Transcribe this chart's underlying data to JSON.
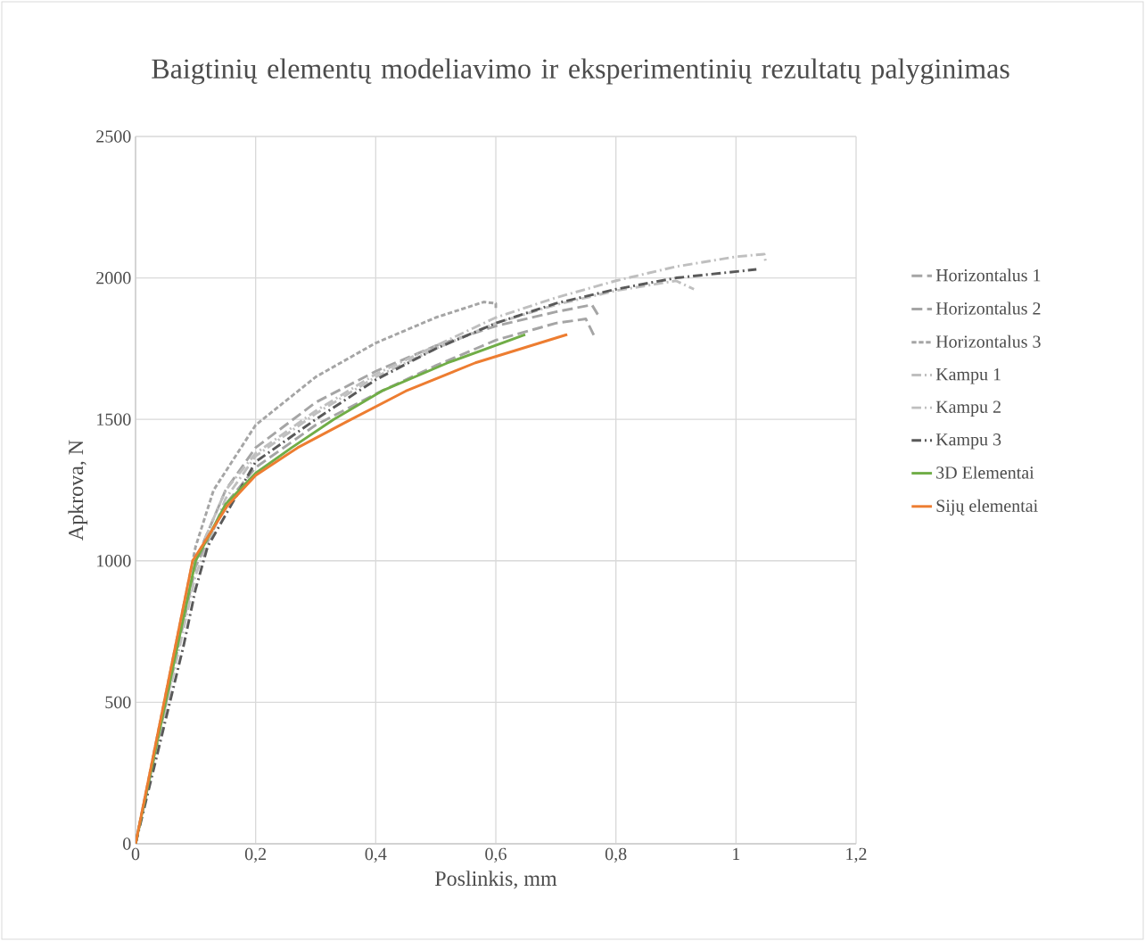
{
  "chart_data": {
    "type": "line",
    "title": "Baigtinių elementų modeliavimo ir eksperimentinių rezultatų palyginimas",
    "xlabel": "Poslinkis, mm",
    "ylabel": "Apkrova, N",
    "xlim": [
      0,
      1.2
    ],
    "ylim": [
      0,
      2500
    ],
    "xticks": [
      0,
      {
        "value": 0.2,
        "label": "0,2"
      },
      {
        "value": 0.4,
        "label": "0,4"
      },
      {
        "value": 0.6,
        "label": "0,6"
      },
      {
        "value": 0.8,
        "label": "0,8"
      },
      1,
      {
        "value": 1.2,
        "label": "1,2"
      }
    ],
    "yticks": [
      0,
      500,
      1000,
      1500,
      2000,
      2500
    ],
    "grid": true,
    "legend": "right",
    "marker": "none",
    "series": [
      {
        "name": "Horizontalus 1",
        "color": "#a5a5a5",
        "line_style": "dashed",
        "x": [
          0,
          0.1,
          0.15,
          0.2,
          0.3,
          0.4,
          0.5,
          0.6,
          0.7,
          0.75,
          0.765
        ],
        "values": [
          0,
          980,
          1200,
          1330,
          1480,
          1590,
          1690,
          1780,
          1840,
          1855,
          1790
        ]
      },
      {
        "name": "Horizontalus 2",
        "color": "#a5a5a5",
        "line_style": "dashed",
        "x": [
          0,
          0.1,
          0.15,
          0.2,
          0.3,
          0.4,
          0.5,
          0.6,
          0.7,
          0.76,
          0.77
        ],
        "values": [
          0,
          1000,
          1250,
          1400,
          1560,
          1670,
          1760,
          1830,
          1880,
          1905,
          1870
        ]
      },
      {
        "name": "Horizontalus 3",
        "color": "#a5a5a5",
        "line_style": "dotted",
        "x": [
          0,
          0.1,
          0.13,
          0.2,
          0.3,
          0.4,
          0.5,
          0.58,
          0.6,
          0.6
        ],
        "values": [
          0,
          1050,
          1250,
          1480,
          1650,
          1770,
          1860,
          1915,
          1910,
          1890
        ]
      },
      {
        "name": "Kampu 1",
        "color": "#bfbfbf",
        "line_style": "dashdot",
        "x": [
          0,
          0.1,
          0.15,
          0.2,
          0.3,
          0.4,
          0.5,
          0.6,
          0.7,
          0.8,
          0.9,
          1.0,
          1.047,
          1.05
        ],
        "values": [
          0,
          1000,
          1250,
          1380,
          1530,
          1660,
          1760,
          1860,
          1930,
          1990,
          2040,
          2075,
          2084,
          2050
        ]
      },
      {
        "name": "Kampu 2",
        "color": "#bfbfbf",
        "line_style": "dashdot",
        "x": [
          0,
          0.1,
          0.15,
          0.2,
          0.3,
          0.4,
          0.5,
          0.6,
          0.7,
          0.8,
          0.9,
          0.93
        ],
        "values": [
          0,
          950,
          1220,
          1370,
          1520,
          1650,
          1750,
          1840,
          1905,
          1955,
          1990,
          1960
        ]
      },
      {
        "name": "Kampu 3",
        "color": "#595959",
        "line_style": "dashdot",
        "x": [
          0,
          0.08,
          0.1,
          0.12,
          0.16,
          0.2,
          0.3,
          0.4,
          0.5,
          0.6,
          0.7,
          0.8,
          0.9,
          1.034
        ],
        "values": [
          0,
          700,
          900,
          1050,
          1200,
          1350,
          1500,
          1640,
          1750,
          1840,
          1910,
          1960,
          2000,
          2030
        ]
      },
      {
        "name": "3D Elementai",
        "color": "#70ad47",
        "line_style": "solid",
        "x": [
          0,
          0.1,
          0.15,
          0.2,
          0.26,
          0.33,
          0.41,
          0.52,
          0.649
        ],
        "values": [
          0,
          1000,
          1200,
          1310,
          1400,
          1500,
          1600,
          1700,
          1800
        ]
      },
      {
        "name": "Sijų elementai",
        "color": "#ed7d31",
        "line_style": "solid",
        "x": [
          0,
          0.095,
          0.11,
          0.153,
          0.2,
          0.27,
          0.35,
          0.45,
          0.566,
          0.719
        ],
        "values": [
          0,
          1000,
          1050,
          1195,
          1302,
          1400,
          1490,
          1600,
          1700,
          1800
        ]
      }
    ]
  }
}
